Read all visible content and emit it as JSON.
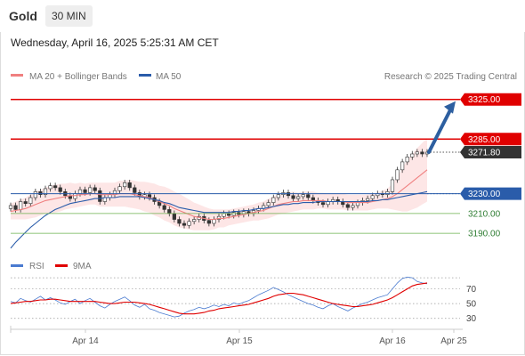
{
  "header": {
    "instrument": "Gold",
    "timeframe": "30 MIN",
    "datetime": "Wednesday, April 16, 2025 5:25:31 AM CET"
  },
  "legend": {
    "ma20": "MA 20 + Bollinger Bands",
    "ma50": "MA 50",
    "credit": "Research © 2025 Trading Central",
    "rsi": "RSI",
    "rsi_ma": "9MA"
  },
  "colors": {
    "ma20": "#f08080",
    "ma50": "#2a5caa",
    "bands": "#fde2e2",
    "resistance": "#e00000",
    "support": "#2a5caa",
    "green_level": "#6ab04c",
    "arrow": "#2d5fa0",
    "current": "#333333"
  },
  "chart_data": [
    {
      "type": "candlestick",
      "title": "Gold",
      "ylim": [
        3165,
        3340
      ],
      "x_tick_labels": [
        "Apr 14",
        "Apr 15",
        "Apr 16",
        "Apr 25"
      ],
      "levels": [
        {
          "value": 3325.0,
          "label": "3325.00",
          "kind": "resistance"
        },
        {
          "value": 3285.0,
          "label": "3285.00",
          "kind": "resistance"
        },
        {
          "value": 3271.8,
          "label": "3271.80",
          "kind": "current"
        },
        {
          "value": 3230.0,
          "label": "3230.00",
          "kind": "pivot"
        },
        {
          "value": 3210.0,
          "label": "3210.00",
          "kind": "support"
        },
        {
          "value": 3190.0,
          "label": "3190.00",
          "kind": "support"
        }
      ],
      "close": [
        3218,
        3214,
        3222,
        3220,
        3226,
        3232,
        3229,
        3235,
        3238,
        3236,
        3232,
        3228,
        3225,
        3230,
        3234,
        3231,
        3236,
        3233,
        3222,
        3226,
        3229,
        3233,
        3237,
        3241,
        3236,
        3231,
        3227,
        3229,
        3226,
        3222,
        3218,
        3214,
        3210,
        3204,
        3200,
        3198,
        3202,
        3204,
        3207,
        3203,
        3200,
        3204,
        3207,
        3210,
        3208,
        3211,
        3209,
        3212,
        3210,
        3213,
        3215,
        3218,
        3221,
        3226,
        3229,
        3231,
        3228,
        3225,
        3227,
        3229,
        3226,
        3223,
        3221,
        3219,
        3222,
        3224,
        3222,
        3219,
        3216,
        3218,
        3221,
        3223,
        3225,
        3228,
        3230,
        3229,
        3232,
        3244,
        3254,
        3262,
        3267,
        3270,
        3272,
        3270,
        3271.8
      ],
      "ma20": [
        3212,
        3213,
        3214,
        3215,
        3217,
        3219,
        3221,
        3223,
        3224,
        3225,
        3226,
        3227,
        3228,
        3228,
        3229,
        3229,
        3230,
        3230,
        3229,
        3229,
        3229,
        3229,
        3230,
        3230,
        3230,
        3229,
        3228,
        3227,
        3226,
        3224,
        3222,
        3220,
        3218,
        3215,
        3213,
        3211,
        3209,
        3207,
        3206,
        3205,
        3204,
        3204,
        3205,
        3205,
        3206,
        3207,
        3208,
        3209,
        3210,
        3211,
        3212,
        3213,
        3215,
        3217,
        3219,
        3220,
        3221,
        3222,
        3222,
        3223,
        3223,
        3223,
        3223,
        3223,
        3222,
        3222,
        3222,
        3222,
        3221,
        3221,
        3221,
        3221,
        3221,
        3222,
        3223,
        3224,
        3225,
        3227,
        3230,
        3234,
        3238,
        3242,
        3246,
        3250,
        3254
      ],
      "ma50": [
        3175,
        3181,
        3186,
        3191,
        3196,
        3200,
        3204,
        3208,
        3211,
        3214,
        3216,
        3218,
        3220,
        3221,
        3222,
        3223,
        3224,
        3225,
        3225,
        3226,
        3226,
        3226,
        3227,
        3227,
        3227,
        3227,
        3227,
        3226,
        3225,
        3224,
        3223,
        3221,
        3220,
        3218,
        3216,
        3215,
        3214,
        3213,
        3212,
        3211,
        3211,
        3211,
        3211,
        3211,
        3211,
        3212,
        3212,
        3213,
        3213,
        3214,
        3215,
        3215,
        3216,
        3217,
        3218,
        3219,
        3219,
        3220,
        3220,
        3221,
        3221,
        3221,
        3222,
        3222,
        3222,
        3222,
        3222,
        3222,
        3222,
        3222,
        3222,
        3222,
        3222,
        3223,
        3223,
        3224,
        3224,
        3225,
        3226,
        3227,
        3228,
        3229,
        3230,
        3231,
        3232
      ],
      "band_halfwidth": [
        8,
        9,
        10,
        11,
        12,
        13,
        13,
        13,
        14,
        14,
        14,
        13,
        13,
        12,
        12,
        11,
        11,
        11,
        12,
        12,
        12,
        12,
        13,
        13,
        14,
        14,
        14,
        15,
        15,
        16,
        16,
        17,
        17,
        17,
        17,
        16,
        15,
        14,
        13,
        12,
        11,
        10,
        9,
        9,
        8,
        8,
        8,
        8,
        8,
        8,
        9,
        9,
        10,
        10,
        10,
        10,
        10,
        10,
        9,
        9,
        9,
        9,
        8,
        8,
        8,
        8,
        8,
        8,
        8,
        8,
        8,
        8,
        8,
        8,
        8,
        9,
        10,
        13,
        17,
        22,
        26,
        28,
        30,
        31,
        32
      ]
    },
    {
      "type": "line",
      "title": "RSI",
      "ylim": [
        20,
        90
      ],
      "y_ticks": [
        70,
        50,
        30
      ],
      "series": [
        {
          "name": "RSI",
          "color": "#4a7bd0",
          "values": [
            53,
            51,
            57,
            54,
            52,
            56,
            60,
            55,
            58,
            55,
            51,
            49,
            53,
            56,
            50,
            54,
            57,
            52,
            47,
            44,
            49,
            53,
            56,
            59,
            54,
            48,
            45,
            49,
            43,
            41,
            38,
            36,
            34,
            32,
            33,
            37,
            40,
            42,
            45,
            43,
            45,
            48,
            46,
            49,
            47,
            51,
            49,
            52,
            54,
            58,
            62,
            65,
            68,
            72,
            69,
            66,
            62,
            59,
            56,
            53,
            50,
            48,
            45,
            43,
            47,
            50,
            46,
            43,
            40,
            44,
            47,
            50,
            52,
            55,
            58,
            60,
            62,
            70,
            78,
            84,
            86,
            85,
            80,
            78,
            77
          ]
        },
        {
          "name": "9MA",
          "color": "#e00000",
          "values": [
            50,
            51,
            52,
            53,
            53,
            54,
            55,
            55,
            56,
            56,
            55,
            54,
            53,
            53,
            53,
            53,
            53,
            53,
            52,
            51,
            50,
            50,
            51,
            52,
            52,
            52,
            51,
            50,
            49,
            47,
            45,
            43,
            41,
            39,
            37,
            36,
            36,
            36,
            37,
            38,
            40,
            41,
            43,
            44,
            45,
            46,
            47,
            48,
            49,
            51,
            53,
            55,
            57,
            60,
            62,
            63,
            64,
            64,
            63,
            62,
            60,
            58,
            56,
            54,
            52,
            50,
            49,
            48,
            47,
            46,
            46,
            47,
            48,
            49,
            51,
            53,
            55,
            58,
            62,
            66,
            70,
            74,
            76,
            77,
            78
          ]
        }
      ]
    }
  ]
}
